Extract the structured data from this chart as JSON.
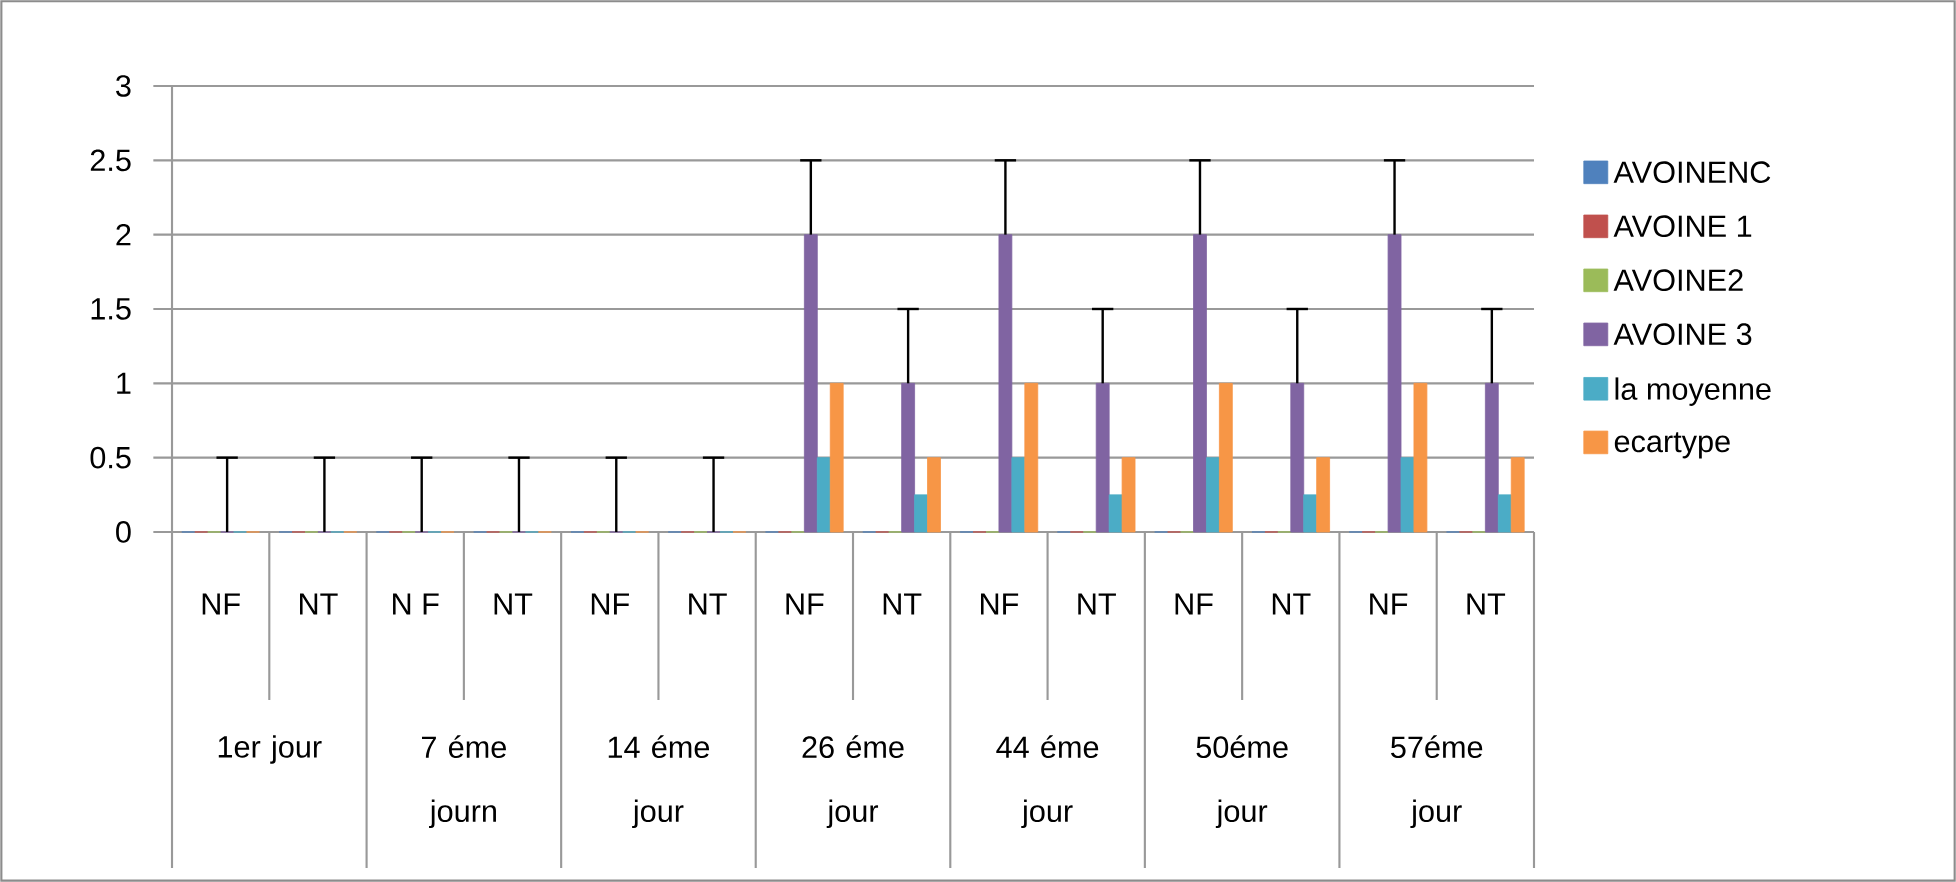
{
  "chart_data": {
    "type": "bar",
    "categories": [
      "NF",
      "NT",
      "N F",
      "NT",
      "NF",
      "NT",
      "NF",
      "NT",
      "NF",
      "NT",
      "NF",
      "NT",
      "NF",
      "NT"
    ],
    "series": [
      {
        "name": "AVOINENC",
        "color": "#4f81bd",
        "values": [
          0,
          0,
          0,
          0,
          0,
          0,
          0,
          0,
          0,
          0,
          0,
          0,
          0,
          0
        ]
      },
      {
        "name": "AVOINE 1",
        "color": "#c0504d",
        "values": [
          0,
          0,
          0,
          0,
          0,
          0,
          0,
          0,
          0,
          0,
          0,
          0,
          0,
          0
        ]
      },
      {
        "name": "AVOINE2",
        "color": "#9bbb59",
        "values": [
          0,
          0,
          0,
          0,
          0,
          0,
          0,
          0,
          0,
          0,
          0,
          0,
          0,
          0
        ]
      },
      {
        "name": "AVOINE 3",
        "color": "#8064a2",
        "values": [
          0,
          0,
          0,
          0,
          0,
          0,
          2,
          1,
          2,
          1,
          2,
          1,
          2,
          1
        ],
        "errors": [
          [
            0,
            0.5
          ],
          [
            0,
            0.5
          ],
          [
            0,
            0.5
          ],
          [
            0,
            0.5
          ],
          [
            0,
            0.5
          ],
          [
            0,
            0.5
          ],
          [
            2,
            2.5
          ],
          [
            1,
            1.5
          ],
          [
            2,
            2.5
          ],
          [
            1,
            1.5
          ],
          [
            2,
            2.5
          ],
          [
            1,
            1.5
          ],
          [
            2,
            2.5
          ],
          [
            1,
            1.5
          ]
        ]
      },
      {
        "name": "la moyenne",
        "color": "#4bacc6",
        "values": [
          0,
          0,
          0,
          0,
          0,
          0,
          0.5,
          0.25,
          0.5,
          0.25,
          0.5,
          0.25,
          0.5,
          0.25
        ]
      },
      {
        "name": "ecartype",
        "color": "#f79646",
        "values": [
          0,
          0,
          0,
          0,
          0,
          0,
          1,
          0.5,
          1,
          0.5,
          1,
          0.5,
          1,
          0.5
        ]
      }
    ],
    "ylim": [
      0,
      3
    ],
    "yticks": [
      0,
      0.5,
      1,
      1.5,
      2,
      2.5,
      3
    ],
    "grid": "y",
    "legend": "right",
    "annotations": [
      "1er jour",
      "7 éme journ",
      "14 éme jour",
      "26 éme jour",
      "44 éme jour",
      "50éme jour",
      "57éme jour"
    ]
  }
}
